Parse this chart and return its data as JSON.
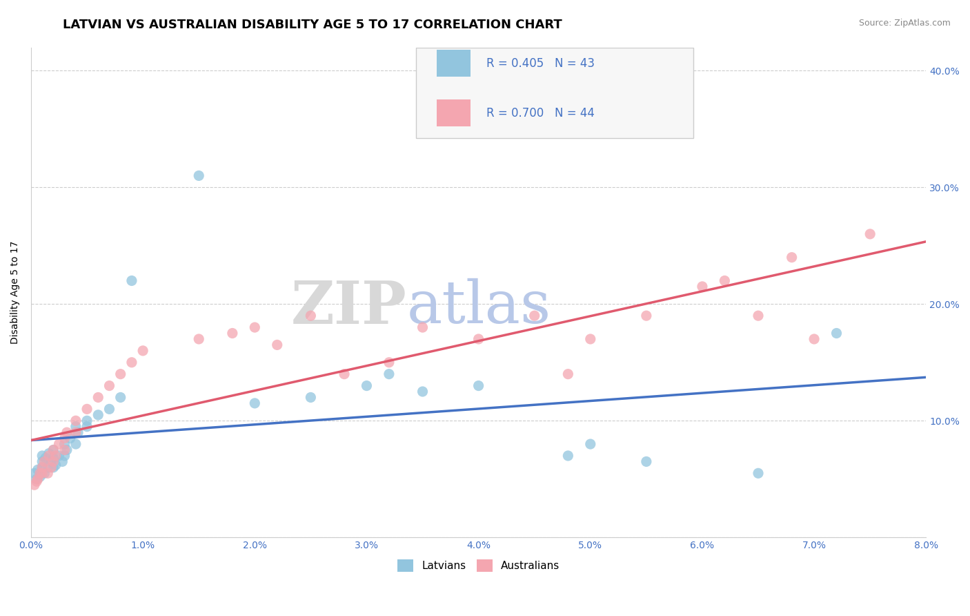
{
  "title": "LATVIAN VS AUSTRALIAN DISABILITY AGE 5 TO 17 CORRELATION CHART",
  "source_text": "Source: ZipAtlas.com",
  "ylabel": "Disability Age 5 to 17",
  "xlim": [
    0.0,
    0.08
  ],
  "ylim": [
    0.0,
    0.42
  ],
  "xticks": [
    0.0,
    0.01,
    0.02,
    0.03,
    0.04,
    0.05,
    0.06,
    0.07,
    0.08
  ],
  "yticks": [
    0.0,
    0.1,
    0.2,
    0.3,
    0.4
  ],
  "ytick_labels_left": [
    "",
    "",
    "",
    "",
    ""
  ],
  "ytick_labels_right": [
    "",
    "10.0%",
    "20.0%",
    "30.0%",
    "40.0%"
  ],
  "xtick_labels": [
    "0.0%",
    "1.0%",
    "2.0%",
    "3.0%",
    "4.0%",
    "5.0%",
    "6.0%",
    "7.0%",
    "8.0%"
  ],
  "latvian_color": "#92C5DE",
  "australian_color": "#F4A6B0",
  "latvian_line_color": "#4472C4",
  "australian_line_color": "#E05A6E",
  "R_latvian": 0.405,
  "N_latvian": 43,
  "R_australian": 0.7,
  "N_australian": 44,
  "legend_label_latvian": "Latvians",
  "legend_label_australian": "Australians",
  "legend_text_color": "#4472C4",
  "watermark_zip": "ZIP",
  "watermark_atlas": "atlas",
  "latvian_x": [
    0.0003,
    0.0005,
    0.0006,
    0.0008,
    0.001,
    0.001,
    0.001,
    0.0012,
    0.0013,
    0.0015,
    0.0016,
    0.0018,
    0.002,
    0.002,
    0.002,
    0.0022,
    0.0025,
    0.0028,
    0.003,
    0.003,
    0.0032,
    0.0035,
    0.004,
    0.004,
    0.0042,
    0.005,
    0.005,
    0.006,
    0.007,
    0.008,
    0.009,
    0.015,
    0.02,
    0.025,
    0.03,
    0.032,
    0.035,
    0.04,
    0.048,
    0.05,
    0.055,
    0.065,
    0.072
  ],
  "latvian_y": [
    0.055,
    0.05,
    0.058,
    0.052,
    0.06,
    0.065,
    0.07,
    0.055,
    0.068,
    0.06,
    0.072,
    0.065,
    0.06,
    0.068,
    0.075,
    0.062,
    0.07,
    0.065,
    0.07,
    0.08,
    0.075,
    0.085,
    0.08,
    0.095,
    0.09,
    0.095,
    0.1,
    0.105,
    0.11,
    0.12,
    0.22,
    0.31,
    0.115,
    0.12,
    0.13,
    0.14,
    0.125,
    0.13,
    0.07,
    0.08,
    0.065,
    0.055,
    0.175
  ],
  "australian_x": [
    0.0003,
    0.0005,
    0.0006,
    0.0008,
    0.001,
    0.001,
    0.0012,
    0.0015,
    0.0016,
    0.0018,
    0.002,
    0.002,
    0.0022,
    0.0025,
    0.003,
    0.003,
    0.0032,
    0.004,
    0.004,
    0.005,
    0.006,
    0.007,
    0.008,
    0.009,
    0.01,
    0.015,
    0.018,
    0.02,
    0.022,
    0.025,
    0.028,
    0.032,
    0.035,
    0.04,
    0.045,
    0.048,
    0.05,
    0.055,
    0.06,
    0.062,
    0.065,
    0.068,
    0.07,
    0.075
  ],
  "australian_y": [
    0.045,
    0.048,
    0.05,
    0.055,
    0.055,
    0.06,
    0.065,
    0.055,
    0.07,
    0.06,
    0.065,
    0.075,
    0.07,
    0.08,
    0.075,
    0.085,
    0.09,
    0.09,
    0.1,
    0.11,
    0.12,
    0.13,
    0.14,
    0.15,
    0.16,
    0.17,
    0.175,
    0.18,
    0.165,
    0.19,
    0.14,
    0.15,
    0.18,
    0.17,
    0.19,
    0.14,
    0.17,
    0.19,
    0.215,
    0.22,
    0.19,
    0.24,
    0.17,
    0.26
  ],
  "background_color": "#FFFFFF",
  "grid_color": "#CCCCCC",
  "title_fontsize": 13,
  "axis_label_fontsize": 10,
  "tick_fontsize": 10,
  "legend_fontsize": 12,
  "tick_color": "#4472C4",
  "source_color": "#888888"
}
